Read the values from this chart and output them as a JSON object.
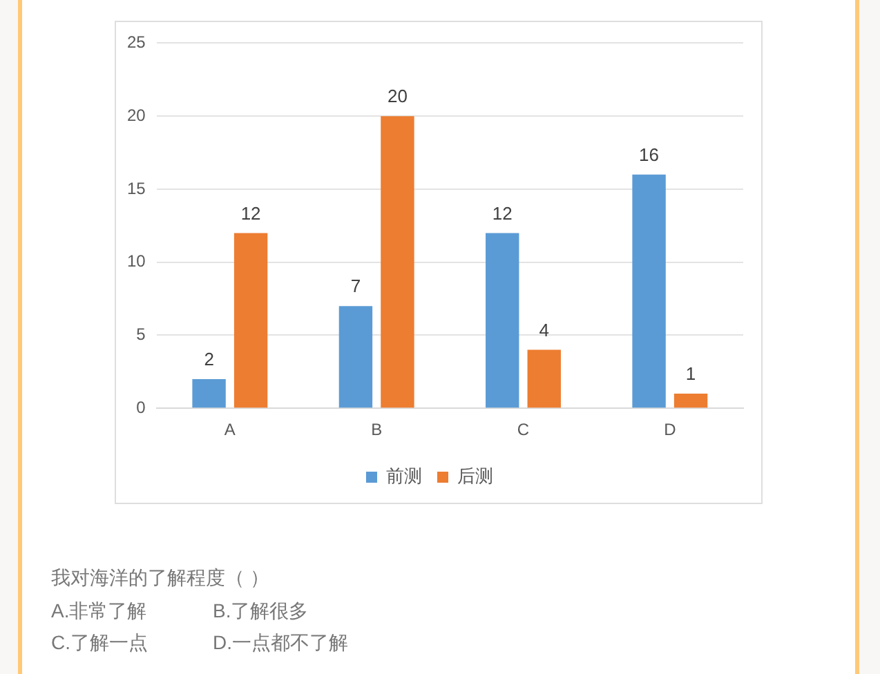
{
  "chart_data": {
    "type": "bar",
    "categories": [
      "A",
      "B",
      "C",
      "D"
    ],
    "series": [
      {
        "name": "前测",
        "color": "#5b9bd5",
        "values": [
          2,
          7,
          12,
          16
        ]
      },
      {
        "name": "后测",
        "color": "#ed7d31",
        "values": [
          12,
          20,
          4,
          1
        ]
      }
    ],
    "ylim": [
      0,
      25
    ],
    "yticks": [
      0,
      5,
      10,
      15,
      20,
      25
    ],
    "grid": "y",
    "legend": "bottom",
    "data_labels": true,
    "annotations": [
      "我对海洋的了解程度（ ）",
      "A.非常了解",
      "B.了解很多",
      "C.了解一点",
      "D.一点都不了解"
    ]
  }
}
